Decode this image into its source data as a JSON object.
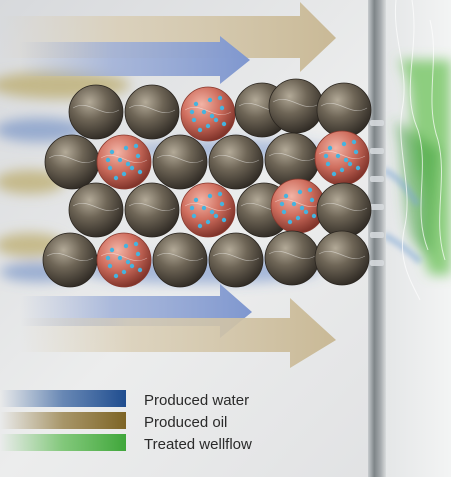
{
  "legend": {
    "items": [
      {
        "label": "Produced water",
        "color": "#2f5c9c"
      },
      {
        "label": "Produced oil",
        "color": "#8a7030"
      },
      {
        "label": "Treated wellflow",
        "color": "#55b84a"
      }
    ]
  },
  "colors": {
    "background": "#e9eaec",
    "pipe_wall": "#8c9295",
    "grain_brown": "#5e554a",
    "treated_particle": "#c96a5a",
    "particle_dot": "#46b3de",
    "flow_arrow_beige": "#d9cdb3",
    "flow_arrow_blue": "#9fb0d8"
  }
}
